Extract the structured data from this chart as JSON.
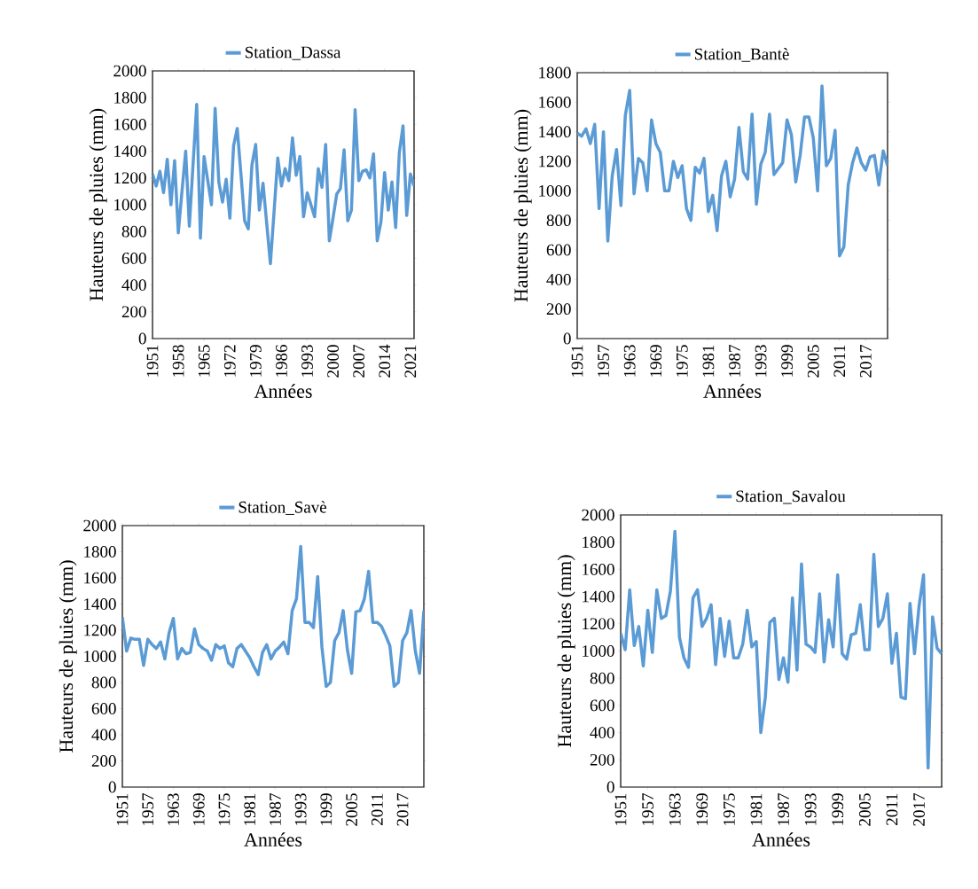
{
  "chart_data": [
    {
      "type": "line",
      "xlabel": "Années",
      "ylabel": "Hauteurs de pluies (mm)",
      "legend": "top",
      "x": [
        1951,
        1952,
        1953,
        1954,
        1955,
        1956,
        1957,
        1958,
        1959,
        1960,
        1961,
        1962,
        1963,
        1964,
        1965,
        1966,
        1967,
        1968,
        1969,
        1970,
        1971,
        1972,
        1973,
        1974,
        1975,
        1976,
        1977,
        1978,
        1979,
        1980,
        1981,
        1982,
        1983,
        1984,
        1985,
        1986,
        1987,
        1988,
        1989,
        1990,
        1991,
        1992,
        1993,
        1994,
        1995,
        1996,
        1997,
        1998,
        1999,
        2000,
        2001,
        2002,
        2003,
        2004,
        2005,
        2006,
        2007,
        2008,
        2009,
        2010,
        2011,
        2012,
        2013,
        2014,
        2015,
        2016,
        2017,
        2018,
        2019,
        2020,
        2021,
        2022
      ],
      "series": [
        {
          "name": "Station_Dassa",
          "color": "#5b9bd5",
          "values": [
            1230,
            1140,
            1250,
            1090,
            1340,
            1000,
            1330,
            790,
            1100,
            1400,
            840,
            1300,
            1750,
            750,
            1360,
            1180,
            1000,
            1720,
            1170,
            1020,
            1190,
            900,
            1440,
            1570,
            1230,
            880,
            820,
            1300,
            1450,
            960,
            1160,
            860,
            560,
            950,
            1350,
            1140,
            1270,
            1180,
            1500,
            1220,
            1360,
            910,
            1090,
            1000,
            910,
            1270,
            1130,
            1450,
            730,
            900,
            1080,
            1120,
            1410,
            880,
            960,
            1710,
            1180,
            1250,
            1260,
            1200,
            1380,
            730,
            870,
            1240,
            960,
            1170,
            830,
            1390,
            1590,
            920,
            1230,
            1140
          ]
        }
      ],
      "xlim": [
        1951,
        2022
      ],
      "xticks": [
        1951,
        1958,
        1965,
        1972,
        1979,
        1986,
        1993,
        2000,
        2007,
        2014,
        2021
      ],
      "ylim": [
        0,
        2000
      ],
      "yticks": [
        0,
        200,
        400,
        600,
        800,
        1000,
        1200,
        1400,
        1600,
        1800,
        2000
      ]
    },
    {
      "type": "line",
      "xlabel": "Années",
      "ylabel": "Hauteurs de pluies (mm)",
      "legend": "top",
      "x": [
        1951,
        1952,
        1953,
        1954,
        1955,
        1956,
        1957,
        1958,
        1959,
        1960,
        1961,
        1962,
        1963,
        1964,
        1965,
        1966,
        1967,
        1968,
        1969,
        1970,
        1971,
        1972,
        1973,
        1974,
        1975,
        1976,
        1977,
        1978,
        1979,
        1980,
        1981,
        1982,
        1983,
        1984,
        1985,
        1986,
        1987,
        1988,
        1989,
        1990,
        1991,
        1992,
        1993,
        1994,
        1995,
        1996,
        1997,
        1998,
        1999,
        2000,
        2001,
        2002,
        2003,
        2004,
        2005,
        2006,
        2007,
        2008,
        2009,
        2010,
        2011,
        2012,
        2013,
        2014,
        2015,
        2016,
        2017,
        2018,
        2019,
        2020,
        2021,
        2022
      ],
      "series": [
        {
          "name": "Station_Bantè",
          "color": "#5b9bd5",
          "values": [
            1390,
            1370,
            1420,
            1320,
            1450,
            880,
            1400,
            660,
            1100,
            1280,
            900,
            1510,
            1680,
            980,
            1220,
            1190,
            1000,
            1480,
            1320,
            1260,
            1000,
            1000,
            1200,
            1090,
            1170,
            880,
            800,
            1160,
            1120,
            1220,
            860,
            970,
            730,
            1100,
            1200,
            960,
            1080,
            1430,
            1130,
            1080,
            1520,
            910,
            1180,
            1260,
            1520,
            1110,
            1150,
            1190,
            1480,
            1380,
            1060,
            1240,
            1500,
            1500,
            1360,
            1000,
            1710,
            1170,
            1220,
            1410,
            560,
            620,
            1040,
            1190,
            1290,
            1190,
            1140,
            1230,
            1240,
            1040,
            1270,
            1170
          ]
        }
      ],
      "xlim": [
        1951,
        2022
      ],
      "xticks": [
        1951,
        1957,
        1963,
        1969,
        1975,
        1981,
        1987,
        1993,
        1999,
        2005,
        2011,
        2017
      ],
      "ylim": [
        0,
        1800
      ],
      "yticks": [
        0,
        200,
        400,
        600,
        800,
        1000,
        1200,
        1400,
        1600,
        1800
      ]
    },
    {
      "type": "line",
      "xlabel": "Années",
      "ylabel": "Hauteurs de pluies (mm)",
      "legend": "top",
      "x": [
        1951,
        1952,
        1953,
        1954,
        1955,
        1956,
        1957,
        1958,
        1959,
        1960,
        1961,
        1962,
        1963,
        1964,
        1965,
        1966,
        1967,
        1968,
        1969,
        1970,
        1971,
        1972,
        1973,
        1974,
        1975,
        1976,
        1977,
        1978,
        1979,
        1980,
        1981,
        1982,
        1983,
        1984,
        1985,
        1986,
        1987,
        1988,
        1989,
        1990,
        1991,
        1992,
        1993,
        1994,
        1995,
        1996,
        1997,
        1998,
        1999,
        2000,
        2001,
        2002,
        2003,
        2004,
        2005,
        2006,
        2007,
        2008,
        2009,
        2010,
        2011,
        2012,
        2013,
        2014,
        2015,
        2016,
        2017,
        2018,
        2019,
        2020,
        2021,
        2022
      ],
      "series": [
        {
          "name": "Station_Savè",
          "color": "#5b9bd5",
          "values": [
            1300,
            1040,
            1140,
            1130,
            1130,
            930,
            1130,
            1090,
            1060,
            1110,
            980,
            1180,
            1290,
            980,
            1060,
            1020,
            1030,
            1210,
            1090,
            1060,
            1040,
            970,
            1090,
            1060,
            1080,
            950,
            920,
            1060,
            1090,
            1040,
            990,
            920,
            860,
            1030,
            1090,
            980,
            1040,
            1070,
            1110,
            1020,
            1350,
            1440,
            1840,
            1260,
            1260,
            1220,
            1610,
            1070,
            770,
            800,
            1120,
            1180,
            1350,
            1050,
            870,
            1340,
            1350,
            1440,
            1650,
            1260,
            1260,
            1230,
            1160,
            1080,
            770,
            800,
            1120,
            1180,
            1350,
            1040,
            870,
            1350
          ]
        }
      ],
      "xlim": [
        1951,
        2022
      ],
      "xticks": [
        1951,
        1957,
        1963,
        1969,
        1975,
        1981,
        1987,
        1993,
        1999,
        2005,
        2011,
        2017
      ],
      "ylim": [
        0,
        2000
      ],
      "yticks": [
        0,
        200,
        400,
        600,
        800,
        1000,
        1200,
        1400,
        1600,
        1800,
        2000
      ]
    },
    {
      "type": "line",
      "xlabel": "Années",
      "ylabel": "Hauteurs de pluies (mm)",
      "legend": "top",
      "x": [
        1951,
        1952,
        1953,
        1954,
        1955,
        1956,
        1957,
        1958,
        1959,
        1960,
        1961,
        1962,
        1963,
        1964,
        1965,
        1966,
        1967,
        1968,
        1969,
        1970,
        1971,
        1972,
        1973,
        1974,
        1975,
        1976,
        1977,
        1978,
        1979,
        1980,
        1981,
        1982,
        1983,
        1984,
        1985,
        1986,
        1987,
        1988,
        1989,
        1990,
        1991,
        1992,
        1993,
        1994,
        1995,
        1996,
        1997,
        1998,
        1999,
        2000,
        2001,
        2002,
        2003,
        2004,
        2005,
        2006,
        2007,
        2008,
        2009,
        2010,
        2011,
        2012,
        2013,
        2014,
        2015,
        2016,
        2017,
        2018,
        2019,
        2020,
        2021,
        2022
      ],
      "series": [
        {
          "name": "Station_Savalou",
          "color": "#5b9bd5",
          "values": [
            1130,
            1010,
            1450,
            1040,
            1180,
            890,
            1300,
            990,
            1450,
            1240,
            1260,
            1440,
            1880,
            1100,
            950,
            880,
            1390,
            1450,
            1180,
            1240,
            1340,
            900,
            1240,
            960,
            1220,
            950,
            950,
            1050,
            1300,
            1030,
            1070,
            400,
            660,
            1210,
            1240,
            790,
            950,
            770,
            1390,
            860,
            1640,
            1050,
            1030,
            990,
            1420,
            920,
            1230,
            1030,
            1560,
            980,
            940,
            1120,
            1130,
            1340,
            1010,
            1010,
            1710,
            1180,
            1240,
            1420,
            910,
            1130,
            660,
            650,
            1350,
            980,
            1330,
            1560,
            140,
            1250,
            1020,
            980
          ]
        }
      ],
      "xlim": [
        1951,
        2022
      ],
      "xticks": [
        1951,
        1957,
        1963,
        1969,
        1975,
        1981,
        1987,
        1993,
        1999,
        2005,
        2011,
        2017
      ],
      "ylim": [
        0,
        2000
      ],
      "yticks": [
        0,
        200,
        400,
        600,
        800,
        1000,
        1200,
        1400,
        1600,
        1800,
        2000
      ]
    }
  ]
}
